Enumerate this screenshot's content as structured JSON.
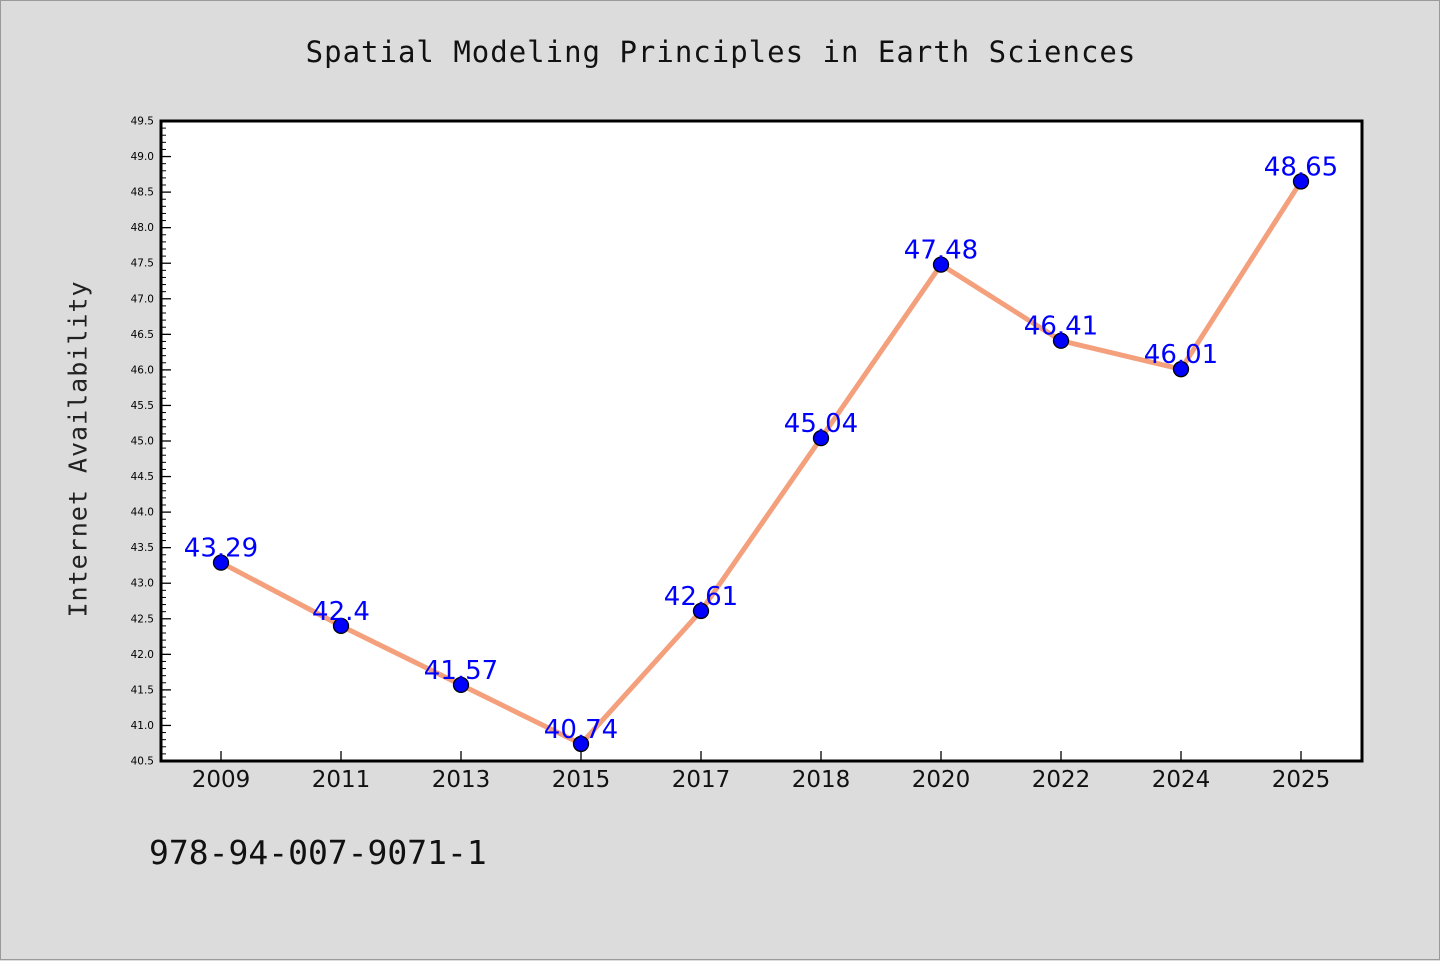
{
  "page": {
    "background": "#dcdcdc",
    "isbn": "978-94-007-9071-1"
  },
  "chart_data": {
    "type": "line",
    "title": "Spatial Modeling Principles in Earth Sciences",
    "xlabel": "",
    "ylabel": "Internet Availability",
    "categories": [
      "2009",
      "2011",
      "2013",
      "2015",
      "2017",
      "2018",
      "2020",
      "2022",
      "2024",
      "2025"
    ],
    "series": [
      {
        "values": [
          43.29,
          42.4,
          41.57,
          40.74,
          42.61,
          45.04,
          47.48,
          46.41,
          46.01,
          48.65
        ],
        "labels": [
          "43.29",
          "42.4",
          "41.57",
          "40.74",
          "42.61",
          "45.04",
          "47.48",
          "46.41",
          "46.01",
          "48.65"
        ],
        "line_color": "#f4a07c",
        "marker_color": "#0000ff"
      }
    ],
    "ylim": [
      40.5,
      49.5
    ],
    "yticks": [
      "40.5",
      "41.0",
      "41.5",
      "42.0",
      "42.5",
      "43.0",
      "43.5",
      "44.0",
      "44.5",
      "45.0",
      "45.5",
      "46.0",
      "46.5",
      "47.0",
      "47.5",
      "48.0",
      "48.5",
      "49.0",
      "49.5"
    ],
    "grid": false,
    "legend": "none",
    "label_color": "#0000ff",
    "plot_background": "#ffffff"
  }
}
